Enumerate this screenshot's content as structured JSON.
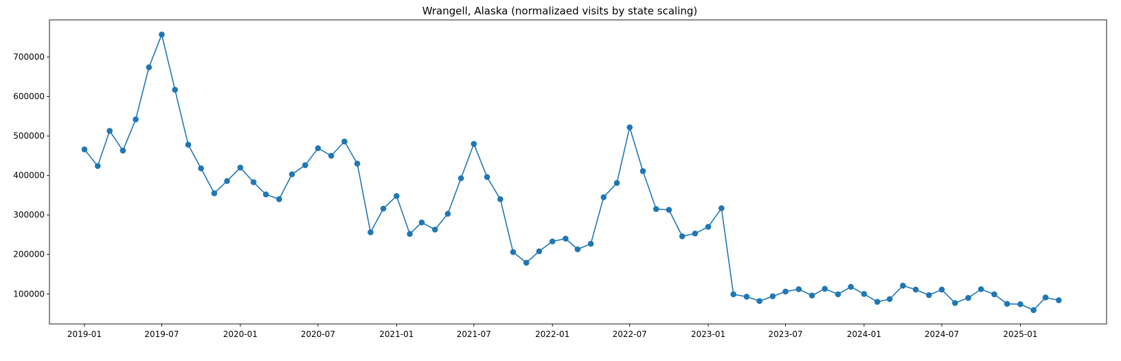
{
  "chart_data": {
    "type": "line",
    "title": "Wrangell, Alaska (normalizaed visits by state scaling)",
    "xlabel": "",
    "ylabel": "",
    "grid": false,
    "marker": "circle",
    "series_color": "#1f77b4",
    "x_tick_labels": [
      "2019-01",
      "2019-07",
      "2020-01",
      "2020-07",
      "2021-01",
      "2021-07",
      "2022-01",
      "2022-07",
      "2023-01",
      "2023-07",
      "2024-01",
      "2024-07",
      "2025-01"
    ],
    "y_ticks": [
      100000,
      200000,
      300000,
      400000,
      500000,
      600000,
      700000
    ],
    "y_tick_labels": [
      "100000",
      "200000",
      "300000",
      "400000",
      "500000",
      "600000",
      "700000"
    ],
    "xlim": [
      "2018-10-11",
      "2025-07-22"
    ],
    "ylim": [
      24000,
      794000
    ],
    "x": [
      "2019-01",
      "2019-02",
      "2019-03",
      "2019-04",
      "2019-05",
      "2019-06",
      "2019-07",
      "2019-08",
      "2019-09",
      "2019-10",
      "2019-11",
      "2019-12",
      "2020-01",
      "2020-02",
      "2020-03",
      "2020-04",
      "2020-05",
      "2020-06",
      "2020-07",
      "2020-08",
      "2020-09",
      "2020-10",
      "2020-11",
      "2020-12",
      "2021-01",
      "2021-02",
      "2021-03",
      "2021-04",
      "2021-05",
      "2021-06",
      "2021-07",
      "2021-08",
      "2021-09",
      "2021-10",
      "2021-11",
      "2021-12",
      "2022-01",
      "2022-02",
      "2022-03",
      "2022-04",
      "2022-05",
      "2022-06",
      "2022-07",
      "2022-08",
      "2022-09",
      "2022-10",
      "2022-11",
      "2022-12",
      "2023-01",
      "2023-02",
      "2023-03",
      "2023-04",
      "2023-05",
      "2023-06",
      "2023-07",
      "2023-08",
      "2023-09",
      "2023-10",
      "2023-11",
      "2023-12",
      "2024-01",
      "2024-02",
      "2024-03",
      "2024-04",
      "2024-05",
      "2024-06",
      "2024-07",
      "2024-08",
      "2024-09",
      "2024-10",
      "2024-11",
      "2024-12",
      "2025-01",
      "2025-02",
      "2025-03",
      "2025-04"
    ],
    "y": [
      466000,
      424000,
      513000,
      463000,
      542000,
      674000,
      757000,
      617000,
      478000,
      418000,
      355000,
      386000,
      420000,
      383000,
      352000,
      340000,
      403000,
      426000,
      469000,
      450000,
      486000,
      430000,
      256000,
      316000,
      348000,
      252000,
      281000,
      263000,
      303000,
      393000,
      480000,
      396000,
      340000,
      206000,
      179000,
      208000,
      233000,
      240000,
      213000,
      227000,
      345000,
      381000,
      522000,
      411000,
      315000,
      313000,
      246000,
      253000,
      270000,
      317000,
      99000,
      93000,
      82000,
      94000,
      106000,
      112000,
      96000,
      113000,
      99000,
      118000,
      100000,
      80000,
      87000,
      121000,
      111000,
      97000,
      111000,
      77000,
      90000,
      112000,
      99000,
      75000,
      74000,
      59000,
      91000,
      84000
    ]
  }
}
